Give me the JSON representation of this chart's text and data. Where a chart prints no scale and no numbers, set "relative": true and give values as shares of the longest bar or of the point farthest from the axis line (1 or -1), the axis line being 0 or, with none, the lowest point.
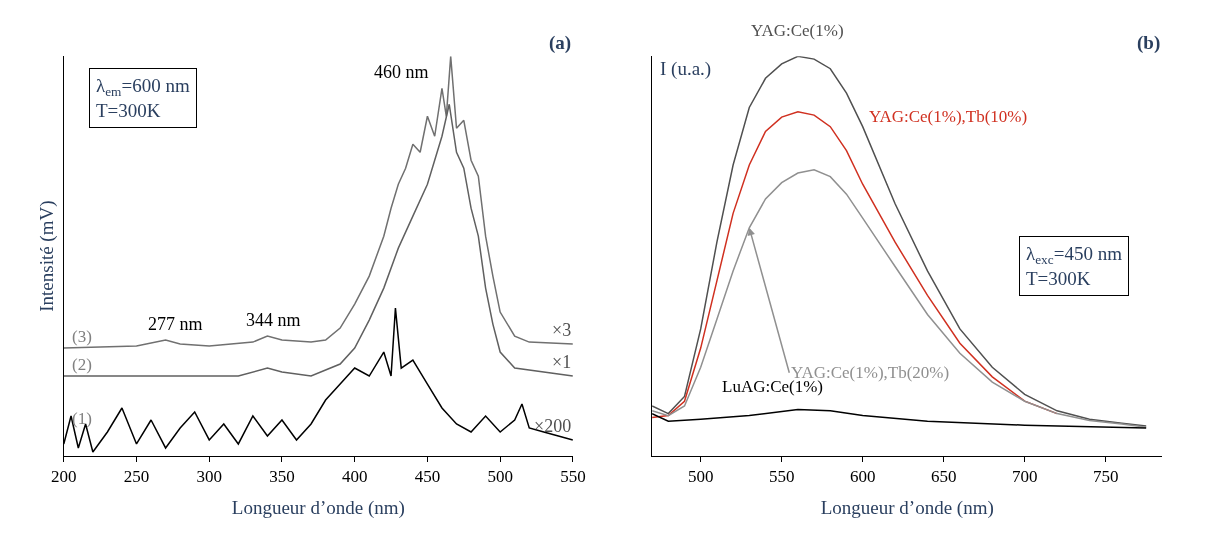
{
  "chart_data": [
    {
      "type": "line",
      "title": "(a)",
      "xlabel": "Longueur d’onde (nm)",
      "ylabel": "Intensité (mV)",
      "relative": true,
      "xlim": [
        200,
        550
      ],
      "xticks": [
        200,
        250,
        300,
        350,
        400,
        450,
        500,
        550
      ],
      "series": [
        {
          "name": "(3)",
          "color": "#707070",
          "x": [
            200,
            250,
            270,
            280,
            300,
            330,
            340,
            350,
            370,
            380,
            390,
            400,
            410,
            420,
            425,
            430,
            435,
            440,
            445,
            450,
            455,
            460,
            463,
            466,
            470,
            475,
            480,
            485,
            490,
            495,
            500,
            510,
            520,
            550
          ],
          "values": [
            0.27,
            0.275,
            0.29,
            0.28,
            0.275,
            0.285,
            0.3,
            0.29,
            0.285,
            0.29,
            0.32,
            0.38,
            0.45,
            0.55,
            0.62,
            0.68,
            0.72,
            0.78,
            0.76,
            0.85,
            0.8,
            0.92,
            0.85,
            1.0,
            0.82,
            0.84,
            0.74,
            0.7,
            0.55,
            0.45,
            0.36,
            0.3,
            0.285,
            0.28
          ]
        },
        {
          "name": "(2)",
          "color": "#606060",
          "x": [
            200,
            320,
            340,
            350,
            370,
            390,
            400,
            410,
            420,
            430,
            440,
            450,
            455,
            460,
            465,
            470,
            475,
            480,
            485,
            490,
            495,
            500,
            510,
            550
          ],
          "values": [
            0.2,
            0.2,
            0.22,
            0.21,
            0.2,
            0.23,
            0.27,
            0.34,
            0.42,
            0.52,
            0.6,
            0.68,
            0.74,
            0.8,
            0.88,
            0.76,
            0.72,
            0.62,
            0.55,
            0.42,
            0.33,
            0.26,
            0.22,
            0.2
          ]
        },
        {
          "name": "(1)",
          "color": "#000000",
          "x": [
            200,
            205,
            210,
            215,
            220,
            230,
            240,
            250,
            260,
            270,
            280,
            290,
            300,
            310,
            320,
            330,
            340,
            350,
            360,
            370,
            380,
            390,
            400,
            410,
            420,
            425,
            428,
            432,
            440,
            450,
            460,
            470,
            480,
            490,
            500,
            510,
            515,
            520,
            530,
            540,
            550
          ],
          "values": [
            0.03,
            0.1,
            0.02,
            0.08,
            0.01,
            0.06,
            0.12,
            0.03,
            0.09,
            0.02,
            0.07,
            0.11,
            0.04,
            0.08,
            0.03,
            0.1,
            0.05,
            0.09,
            0.04,
            0.08,
            0.14,
            0.18,
            0.22,
            0.2,
            0.26,
            0.2,
            0.37,
            0.22,
            0.24,
            0.18,
            0.12,
            0.08,
            0.06,
            0.1,
            0.06,
            0.09,
            0.13,
            0.07,
            0.06,
            0.05,
            0.04
          ]
        }
      ],
      "annotations": [
        "λ$_{em}$=600 nm\nT=300K",
        {
          "text": "277 nm",
          "x": 277,
          "y": 0.29
        },
        {
          "text": "344 nm",
          "x": 344,
          "y": 0.3
        },
        {
          "text": "460 nm",
          "x": 460,
          "y": 0.92
        },
        {
          "text": "×3",
          "x": 550,
          "y": 0.28
        },
        {
          "text": "×1",
          "x": 550,
          "y": 0.2
        },
        {
          "text": "×200",
          "x": 550,
          "y": 0.04
        }
      ]
    },
    {
      "type": "line",
      "title": "(b)",
      "xlabel": "Longueur d’onde (nm)",
      "ylabel": "I (u.a.)",
      "relative": true,
      "xlim": [
        470,
        785
      ],
      "xticks": [
        500,
        550,
        600,
        650,
        700,
        750
      ],
      "series": [
        {
          "name": "YAG:Ce(1%)",
          "color": "#505050",
          "x": [
            470,
            480,
            490,
            500,
            510,
            520,
            530,
            540,
            550,
            560,
            570,
            580,
            590,
            600,
            620,
            640,
            660,
            680,
            700,
            720,
            740,
            760,
            775
          ],
          "values": [
            0.125,
            0.106,
            0.149,
            0.318,
            0.535,
            0.728,
            0.872,
            0.945,
            0.981,
            1.0,
            0.993,
            0.969,
            0.908,
            0.824,
            0.631,
            0.463,
            0.318,
            0.222,
            0.154,
            0.113,
            0.092,
            0.082,
            0.075
          ]
        },
        {
          "name": "YAG:Ce(1%),Tb(10%)",
          "color": "#d03020",
          "x": [
            470,
            480,
            490,
            500,
            510,
            520,
            530,
            540,
            550,
            560,
            570,
            580,
            590,
            600,
            620,
            640,
            660,
            680,
            700,
            720
          ],
          "values": [
            0.096,
            0.101,
            0.137,
            0.27,
            0.438,
            0.607,
            0.728,
            0.812,
            0.848,
            0.861,
            0.853,
            0.824,
            0.764,
            0.68,
            0.535,
            0.402,
            0.282,
            0.198,
            0.137,
            0.106
          ]
        },
        {
          "name": "YAG:Ce(1%),Tb(20%)",
          "color": "#909090",
          "x": [
            470,
            480,
            490,
            500,
            510,
            520,
            530,
            540,
            550,
            560,
            570,
            580,
            590,
            600,
            620,
            640,
            660,
            680,
            700,
            720,
            740,
            760,
            775
          ],
          "values": [
            0.113,
            0.101,
            0.125,
            0.222,
            0.342,
            0.463,
            0.571,
            0.643,
            0.684,
            0.708,
            0.716,
            0.699,
            0.655,
            0.595,
            0.474,
            0.354,
            0.257,
            0.185,
            0.137,
            0.106,
            0.089,
            0.08,
            0.072
          ]
        },
        {
          "name": "LuAG:Ce(1%)",
          "color": "#000000",
          "x": [
            470,
            480,
            500,
            530,
            560,
            580,
            600,
            640,
            700,
            775
          ],
          "values": [
            0.106,
            0.087,
            0.092,
            0.101,
            0.116,
            0.113,
            0.101,
            0.087,
            0.077,
            0.07
          ]
        }
      ],
      "annotations": [
        "λ$_{exc}$=450 nm\nT=300K"
      ]
    }
  ]
}
